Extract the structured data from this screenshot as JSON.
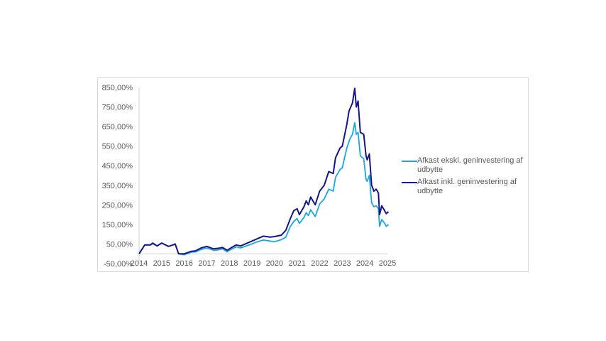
{
  "chart_data": {
    "type": "line",
    "title": "",
    "xlabel": "",
    "ylabel": "",
    "xlim": [
      2014,
      2025
    ],
    "ylim": [
      -50,
      850
    ],
    "x_ticks": [
      "2014",
      "2015",
      "2016",
      "2017",
      "2018",
      "2019",
      "2020",
      "2021",
      "2022",
      "2023",
      "2024",
      "2025"
    ],
    "y_ticks": [
      "-50,00%",
      "50,00%",
      "150,00%",
      "250,00%",
      "350,00%",
      "450,00%",
      "550,00%",
      "650,00%",
      "750,00%",
      "850,00%"
    ],
    "y_tick_values": [
      -50,
      50,
      150,
      250,
      350,
      450,
      550,
      650,
      750,
      850
    ],
    "grid": false,
    "legend_position": "right",
    "series": [
      {
        "name": "Afkast ekskl. geninvestering af udbytte",
        "color": "#1aa7e0",
        "x": [
          2014.0,
          2014.25,
          2014.5,
          2014.6,
          2014.8,
          2015.0,
          2015.3,
          2015.5,
          2015.6,
          2015.75,
          2016.0,
          2016.3,
          2016.5,
          2016.75,
          2017.0,
          2017.3,
          2017.5,
          2017.7,
          2017.9,
          2018.0,
          2018.3,
          2018.5,
          2018.8,
          2019.0,
          2019.2,
          2019.5,
          2019.8,
          2020.0,
          2020.3,
          2020.5,
          2020.7,
          2020.85,
          2021.0,
          2021.1,
          2021.3,
          2021.4,
          2021.5,
          2021.6,
          2021.8,
          2022.0,
          2022.2,
          2022.4,
          2022.6,
          2022.7,
          2022.9,
          2023.0,
          2023.2,
          2023.35,
          2023.45,
          2023.55,
          2023.62,
          2023.7,
          2023.8,
          2023.95,
          2024.05,
          2024.1,
          2024.2,
          2024.3,
          2024.4,
          2024.5,
          2024.6,
          2024.65,
          2024.75,
          2024.85,
          2024.95,
          2025.05
        ],
        "y": [
          0,
          45,
          45,
          52,
          40,
          55,
          38,
          45,
          48,
          0,
          -5,
          8,
          10,
          22,
          30,
          18,
          20,
          25,
          10,
          18,
          35,
          30,
          42,
          50,
          60,
          70,
          65,
          62,
          72,
          85,
          140,
          165,
          180,
          155,
          185,
          210,
          195,
          225,
          190,
          255,
          280,
          330,
          320,
          390,
          430,
          440,
          540,
          590,
          610,
          670,
          610,
          620,
          500,
          485,
          380,
          370,
          400,
          260,
          240,
          245,
          230,
          140,
          175,
          160,
          140,
          150
        ]
      },
      {
        "name": "Afkast inkl. geninvestering af udbytte",
        "color": "#14148c",
        "x": [
          2014.0,
          2014.25,
          2014.5,
          2014.6,
          2014.8,
          2015.0,
          2015.3,
          2015.5,
          2015.6,
          2015.75,
          2016.0,
          2016.3,
          2016.5,
          2016.75,
          2017.0,
          2017.3,
          2017.5,
          2017.7,
          2017.9,
          2018.0,
          2018.3,
          2018.5,
          2018.8,
          2019.0,
          2019.2,
          2019.5,
          2019.8,
          2020.0,
          2020.3,
          2020.5,
          2020.7,
          2020.85,
          2021.0,
          2021.1,
          2021.3,
          2021.4,
          2021.5,
          2021.6,
          2021.8,
          2022.0,
          2022.2,
          2022.4,
          2022.6,
          2022.7,
          2022.9,
          2023.0,
          2023.2,
          2023.3,
          2023.45,
          2023.55,
          2023.62,
          2023.7,
          2023.8,
          2023.95,
          2024.05,
          2024.1,
          2024.2,
          2024.3,
          2024.4,
          2024.5,
          2024.6,
          2024.65,
          2024.75,
          2024.85,
          2024.95,
          2025.05
        ],
        "y": [
          0,
          45,
          45,
          55,
          40,
          55,
          38,
          45,
          50,
          0,
          0,
          12,
          15,
          30,
          38,
          25,
          28,
          32,
          18,
          25,
          45,
          40,
          55,
          65,
          75,
          90,
          85,
          88,
          95,
          120,
          180,
          220,
          230,
          200,
          240,
          270,
          250,
          290,
          250,
          320,
          350,
          420,
          410,
          490,
          540,
          550,
          660,
          730,
          770,
          845,
          750,
          780,
          620,
          610,
          500,
          480,
          510,
          350,
          320,
          330,
          310,
          200,
          245,
          225,
          205,
          215
        ]
      }
    ]
  }
}
